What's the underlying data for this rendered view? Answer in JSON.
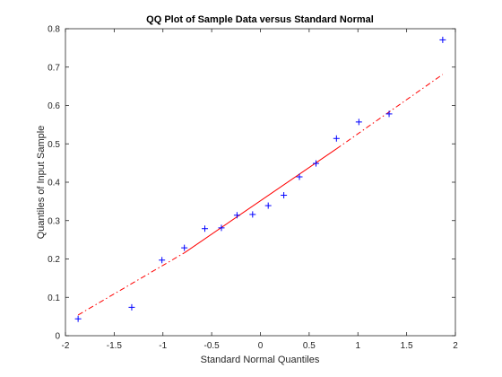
{
  "chart_data": {
    "type": "scatter",
    "title": "QQ Plot of Sample Data versus Standard Normal",
    "xlabel": "Standard Normal Quantiles",
    "ylabel": "Quantiles of Input Sample",
    "xlim": [
      -2,
      2
    ],
    "ylim": [
      0,
      0.8
    ],
    "xticks": [
      "-2",
      "-1.5",
      "-1",
      "-0.5",
      "0",
      "0.5",
      "1",
      "1.5",
      "2"
    ],
    "yticks": [
      "0",
      "0.1",
      "0.2",
      "0.3",
      "0.4",
      "0.5",
      "0.6",
      "0.7",
      "0.8"
    ],
    "grid": false,
    "marker": "+",
    "marker_color": "#0000ff",
    "line_color": "#ff0000",
    "points": [
      [
        -1.87,
        0.044
      ],
      [
        -1.32,
        0.074
      ],
      [
        -1.01,
        0.197
      ],
      [
        -0.78,
        0.229
      ],
      [
        -0.57,
        0.279
      ],
      [
        -0.4,
        0.281
      ],
      [
        -0.24,
        0.314
      ],
      [
        -0.08,
        0.316
      ],
      [
        0.08,
        0.339
      ],
      [
        0.24,
        0.366
      ],
      [
        0.4,
        0.414
      ],
      [
        0.57,
        0.449
      ],
      [
        0.78,
        0.514
      ],
      [
        1.01,
        0.557
      ],
      [
        1.32,
        0.578
      ],
      [
        1.87,
        0.771
      ]
    ],
    "reference_line": {
      "solid": [
        [
          -0.78,
          0.216
        ],
        [
          0.78,
          0.487
        ]
      ],
      "dashdot_left": [
        [
          -1.87,
          0.054
        ],
        [
          -0.78,
          0.216
        ]
      ],
      "dashdot_right": [
        [
          0.78,
          0.487
        ],
        [
          1.87,
          0.681
        ]
      ]
    }
  }
}
